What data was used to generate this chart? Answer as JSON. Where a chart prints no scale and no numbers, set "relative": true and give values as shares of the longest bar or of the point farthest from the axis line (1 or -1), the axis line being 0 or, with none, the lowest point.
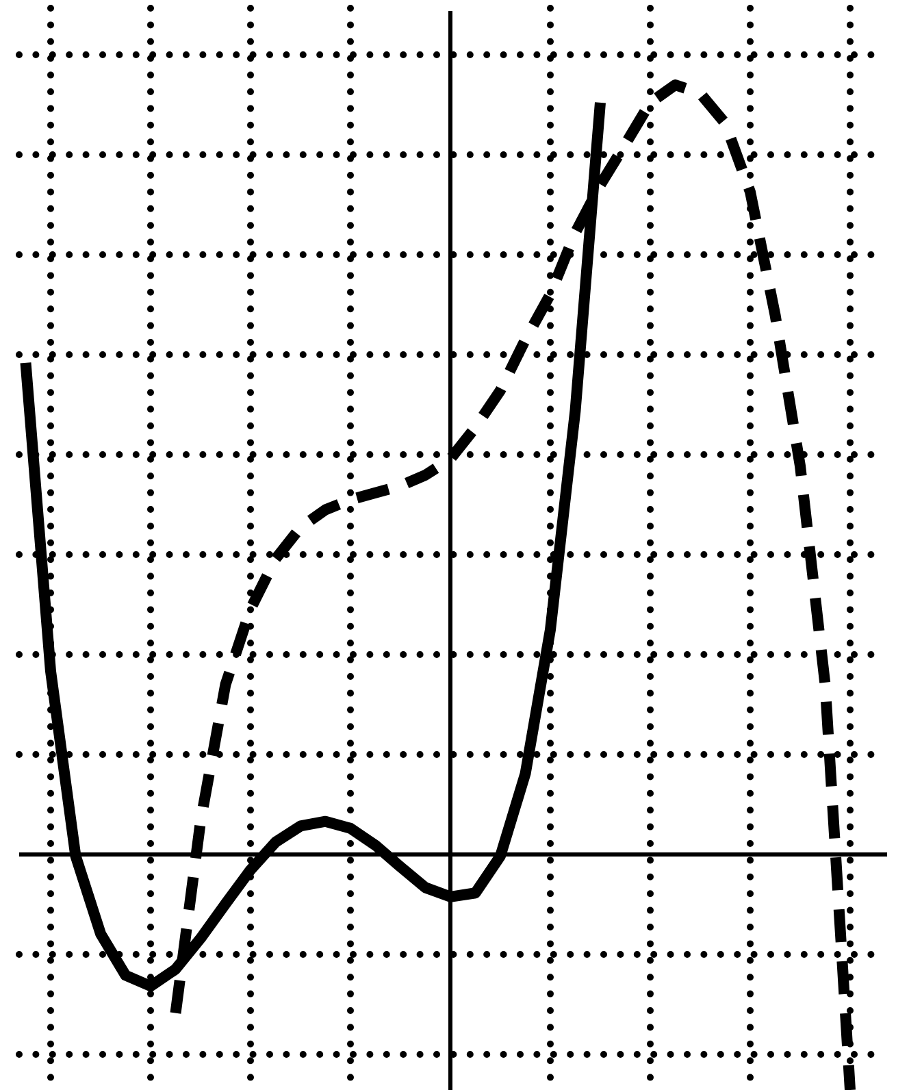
{
  "chart_data": {
    "type": "line",
    "relative": true,
    "grid": true,
    "legend": false,
    "marker": "none",
    "categories": [
      null,
      null,
      null,
      null,
      null,
      null,
      null,
      null,
      null,
      null,
      null,
      null,
      null,
      null,
      null,
      null,
      null,
      null,
      null,
      null,
      null,
      null,
      null,
      null,
      null,
      null,
      null,
      null,
      null,
      null,
      null,
      null,
      null,
      null,
      null
    ],
    "series": [
      {
        "color": "#000000",
        "line_style": "solid",
        "values": [
          0.639,
          0.238,
          -0.002,
          -0.103,
          -0.157,
          -0.171,
          -0.149,
          -0.109,
          -0.064,
          -0.02,
          0.016,
          0.037,
          0.043,
          0.034,
          0.012,
          -0.016,
          -0.043,
          -0.055,
          -0.05,
          -0.002,
          0.105,
          0.292,
          0.577,
          0.977,
          null,
          null,
          null,
          null,
          null,
          null,
          null,
          null,
          null,
          null,
          null
        ]
      },
      {
        "color": "#000000",
        "line_style": "dashed",
        "values": [
          null,
          null,
          null,
          null,
          null,
          null,
          -0.206,
          0.043,
          0.221,
          0.319,
          0.384,
          0.425,
          0.448,
          0.461,
          0.47,
          0.479,
          0.493,
          0.514,
          0.555,
          0.603,
          0.669,
          0.728,
          0.808,
          0.87,
          0.923,
          0.977,
          1,
          0.989,
          0.95,
          0.861,
          0.701,
          0.505,
          0.221,
          -0.306,
          null
        ]
      }
    ]
  }
}
